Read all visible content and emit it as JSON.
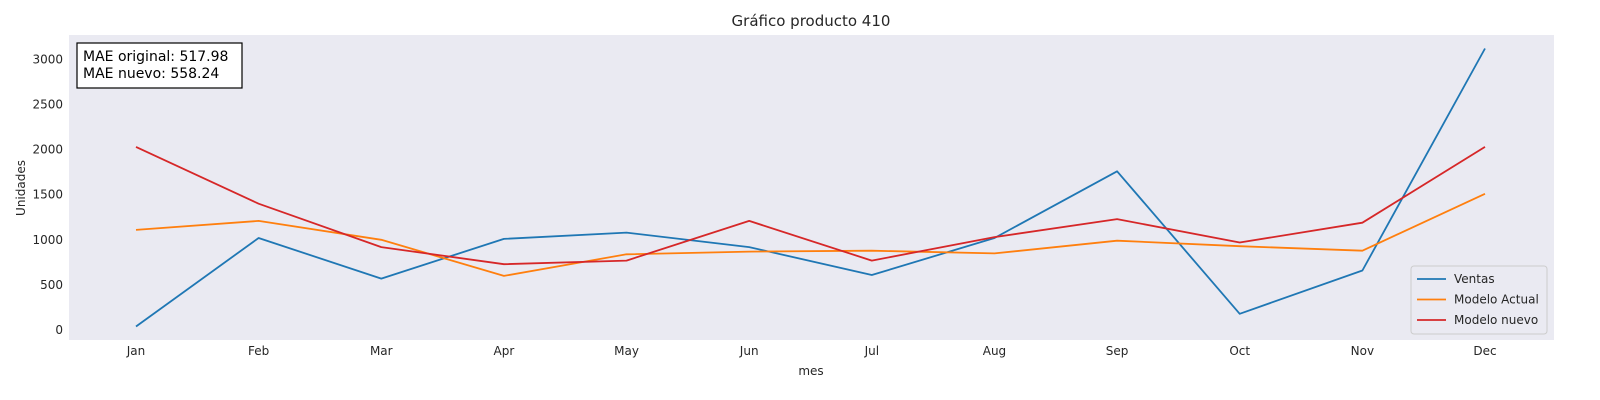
{
  "chart_data": {
    "type": "line",
    "title": "Gráfico producto 410",
    "xlabel": "mes",
    "ylabel": "Unidades",
    "categories": [
      "Jan",
      "Feb",
      "Mar",
      "Apr",
      "May",
      "Jun",
      "Jul",
      "Aug",
      "Sep",
      "Oct",
      "Nov",
      "Dec"
    ],
    "yticks": [
      0,
      500,
      1000,
      1500,
      2000,
      2500,
      3000
    ],
    "ylim": [
      -110,
      3270
    ],
    "grid": false,
    "legend_position": "lower-right",
    "annotation": [
      "MAE original: 517.98",
      "MAE nuevo: 558.24"
    ],
    "series": [
      {
        "name": "Ventas",
        "color": "#1f77b4",
        "values": [
          40,
          1020,
          570,
          1010,
          1080,
          920,
          610,
          1020,
          1760,
          180,
          660,
          3120
        ]
      },
      {
        "name": "Modelo Actual",
        "color": "#ff7f0e",
        "values": [
          1110,
          1210,
          1000,
          600,
          840,
          870,
          880,
          850,
          990,
          930,
          880,
          1510
        ]
      },
      {
        "name": "Modelo nuevo",
        "color": "#d62728",
        "values": [
          2030,
          1400,
          920,
          730,
          770,
          1210,
          770,
          1030,
          1230,
          970,
          1190,
          2030
        ]
      }
    ],
    "background": "#eaeaf2"
  }
}
